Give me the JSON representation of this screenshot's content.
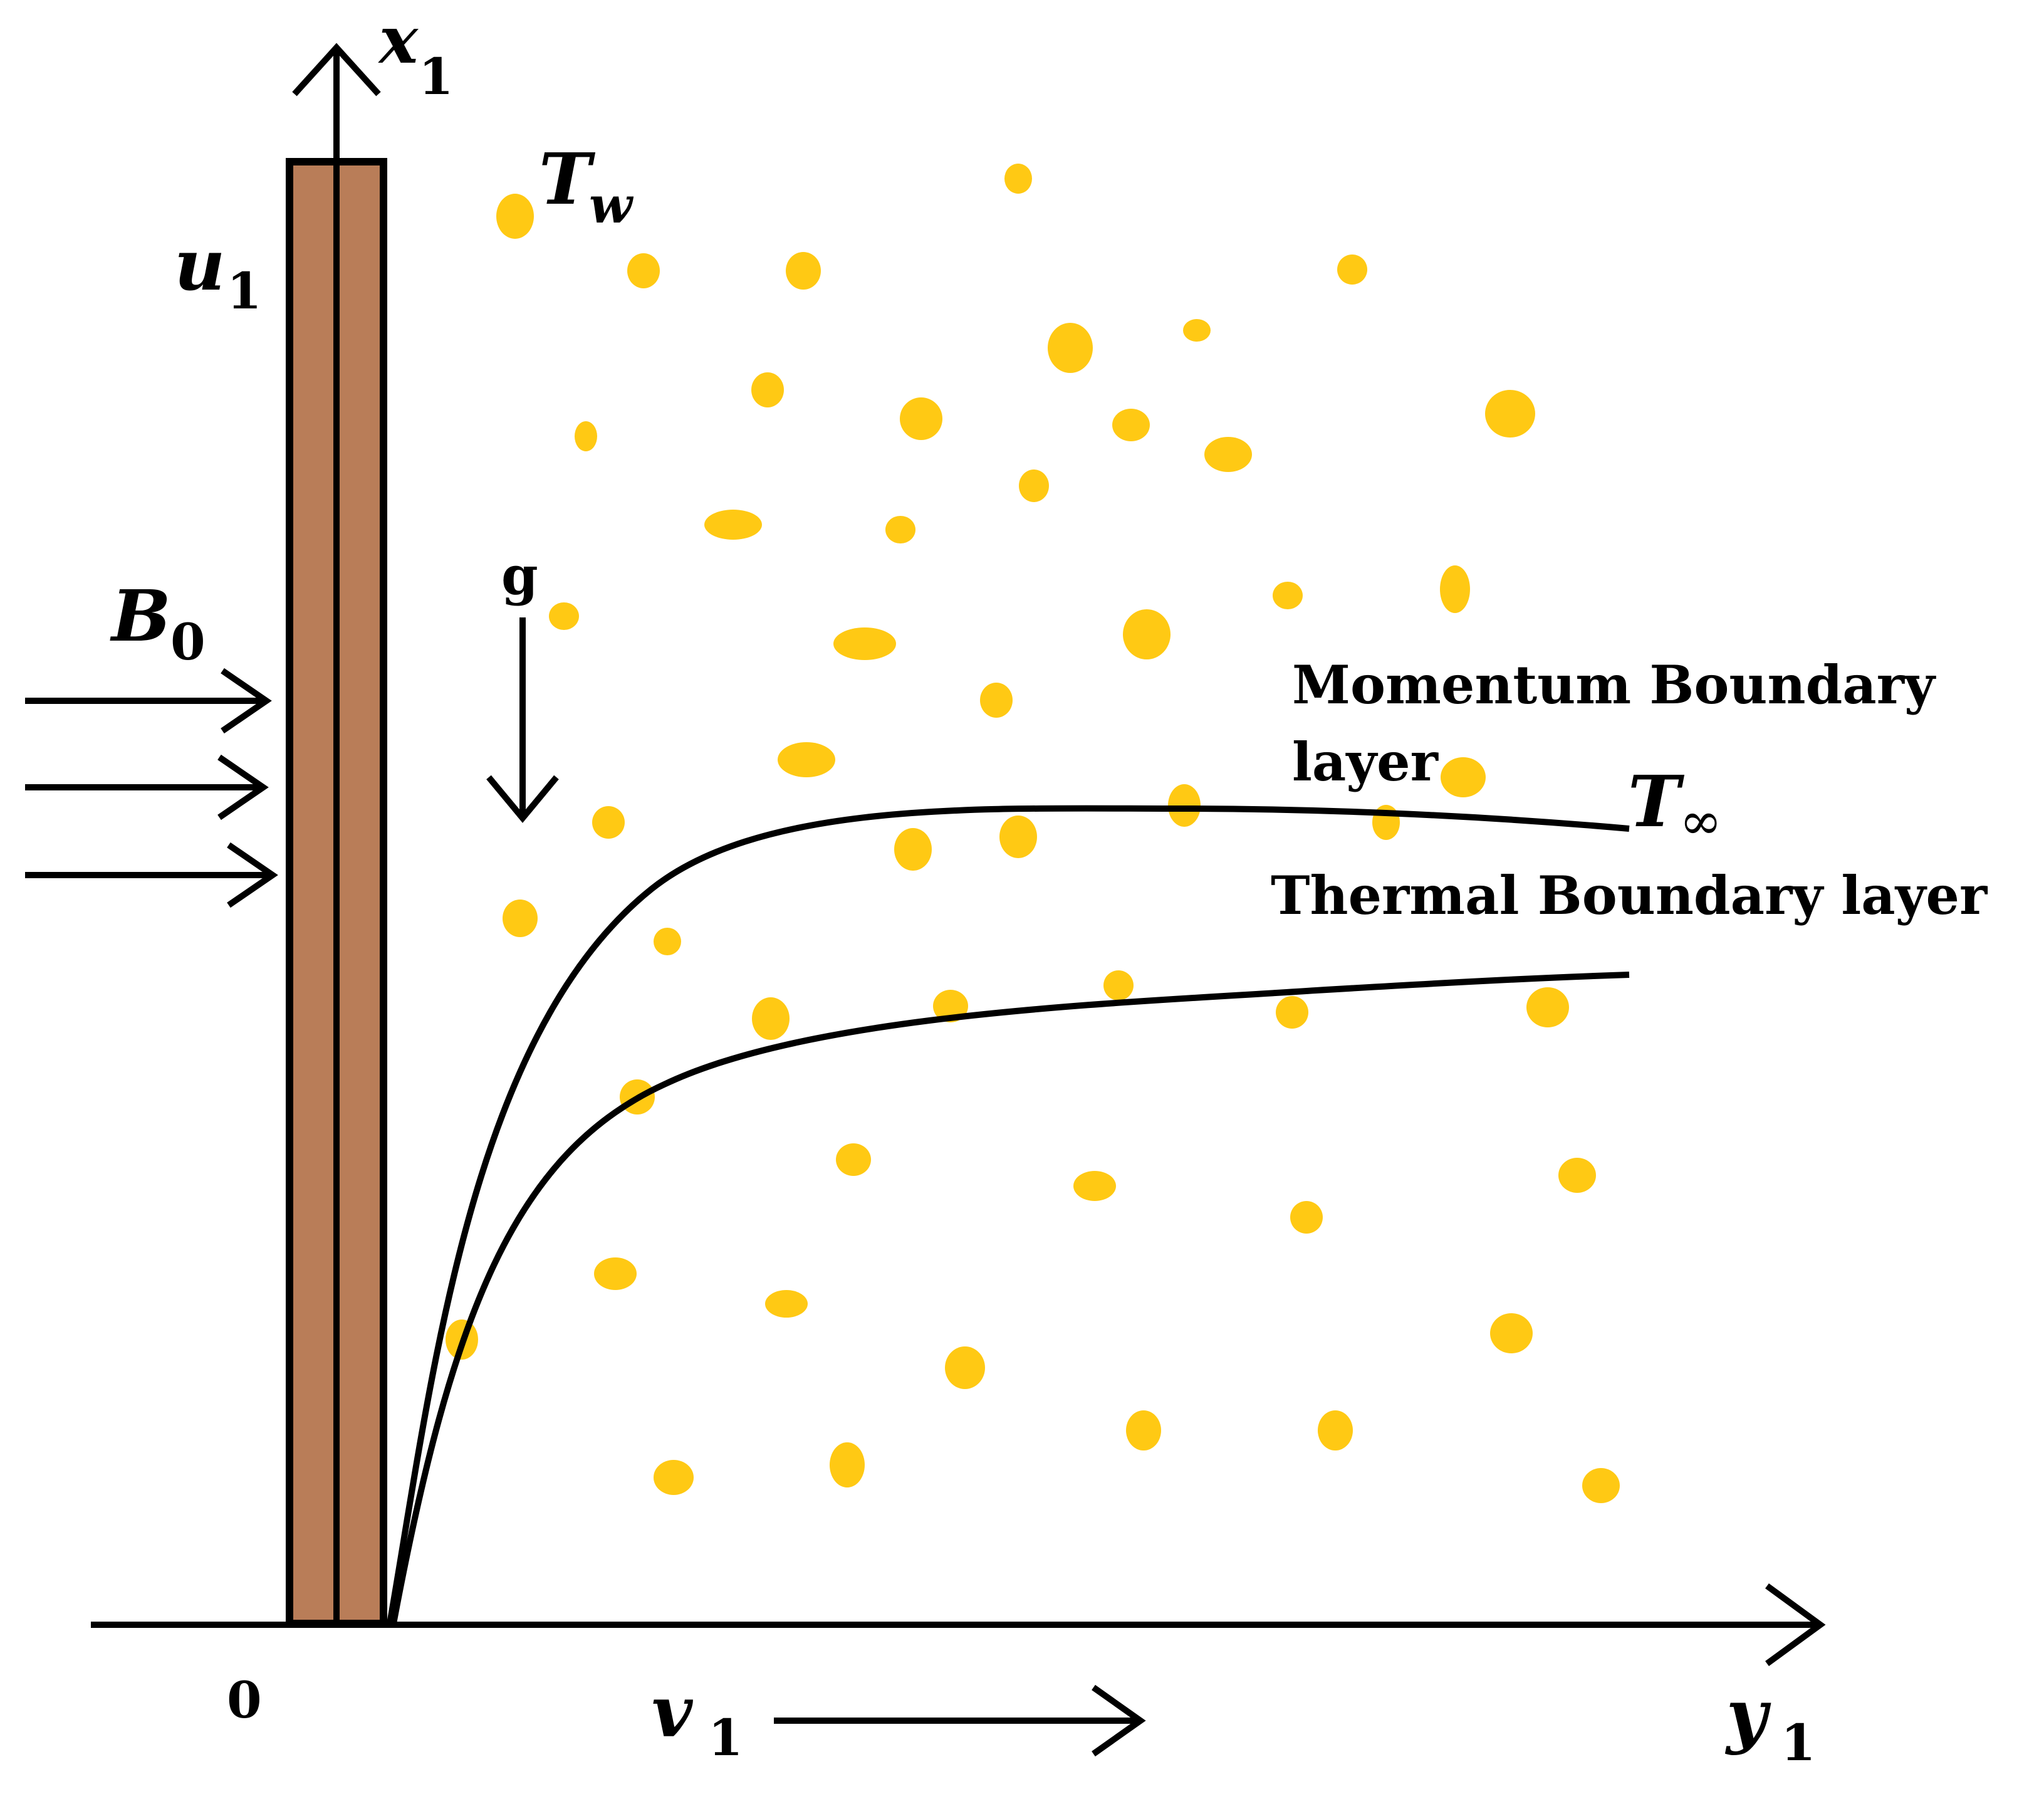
{
  "labels": {
    "x_axis": "x",
    "x_axis_sub": "1",
    "y_axis": "y",
    "y_axis_sub": "1",
    "u_velocity": "u",
    "u_sub": "1",
    "v_velocity": "v",
    "v_sub": "1",
    "wall_temp": "T",
    "wall_temp_sub": "w",
    "ambient_temp": "T",
    "ambient_temp_sub": "∞",
    "magnetic_field": "B",
    "magnetic_sub": "0",
    "gravity": "g",
    "origin": "0",
    "momentum_line1": "Momentum Boundary",
    "momentum_line2": "layer",
    "thermal": "Thermal Boundary layer"
  },
  "colors": {
    "plate": "#b97d58",
    "particles": "#ffc914",
    "lines": "#000000",
    "background": "#ffffff"
  }
}
